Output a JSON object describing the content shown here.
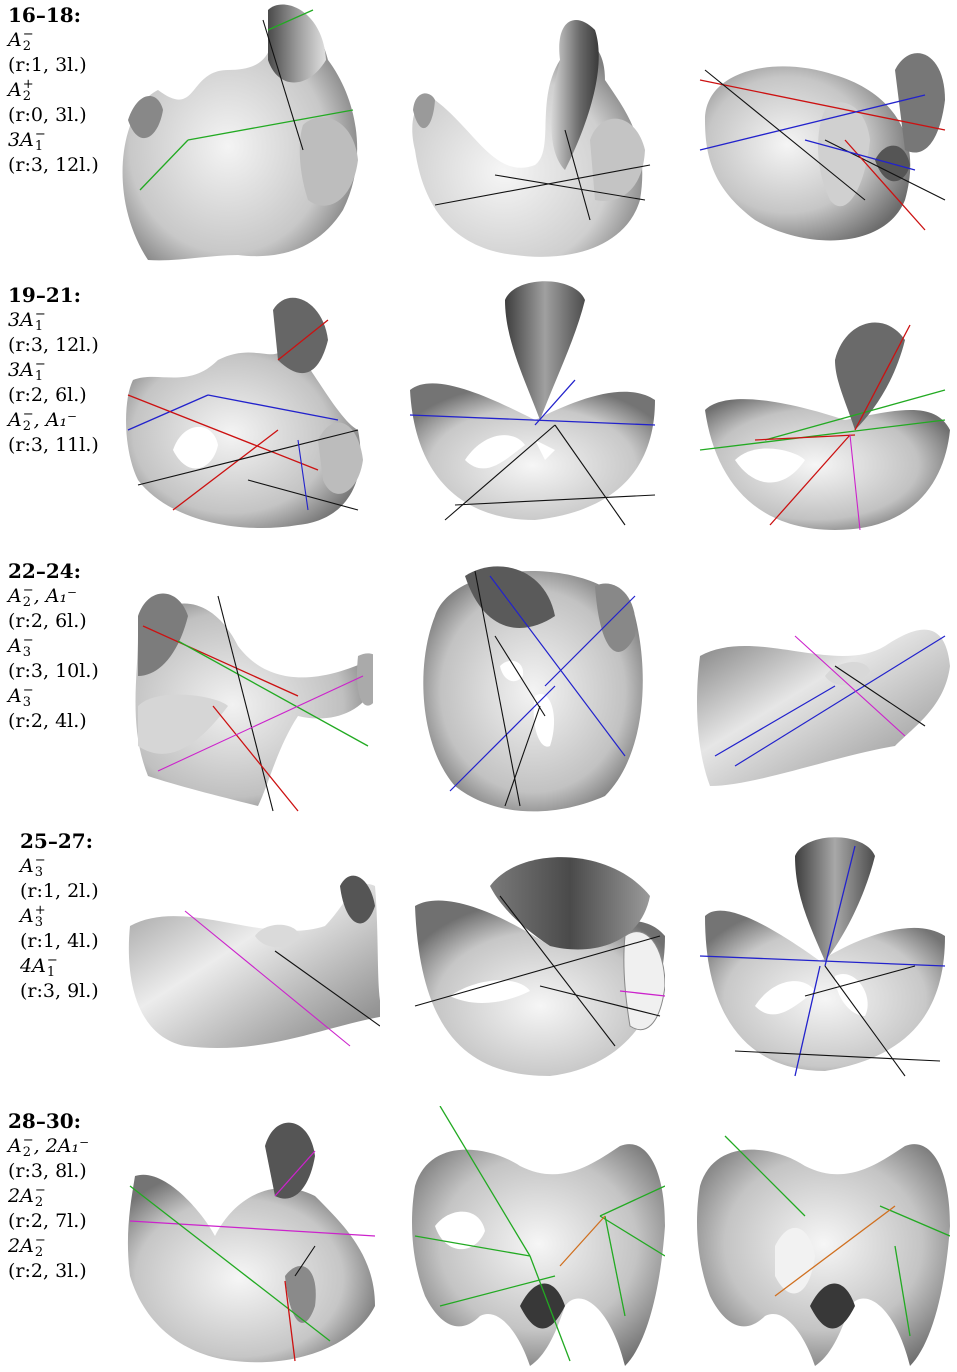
{
  "rows": [
    {
      "title": "16–18:",
      "items": [
        {
          "sing": "A",
          "sub": "2",
          "sup": "−",
          "prefix": "",
          "suffix": "",
          "param": "(r:1, 3l.)"
        },
        {
          "sing": "A",
          "sub": "2",
          "sup": "+",
          "prefix": "",
          "suffix": "",
          "param": "(r:0, 3l.)"
        },
        {
          "sing": "A",
          "sub": "1",
          "sup": "−",
          "prefix": "3",
          "suffix": "",
          "param": "(r:3, 12l.)"
        }
      ]
    },
    {
      "title": "19–21:",
      "items": [
        {
          "sing": "A",
          "sub": "1",
          "sup": "−",
          "prefix": "3",
          "suffix": "",
          "param": "(r:3, 12l.)"
        },
        {
          "sing": "A",
          "sub": "1",
          "sup": "−",
          "prefix": "3",
          "suffix": "",
          "param": "(r:2, 6l.)"
        },
        {
          "sing": "A",
          "sub": "2",
          "sup": "−",
          "prefix": "",
          "suffix": ", A₁⁻",
          "param": "(r:3, 11l.)"
        }
      ]
    },
    {
      "title": "22–24:",
      "items": [
        {
          "sing": "A",
          "sub": "2",
          "sup": "−",
          "prefix": "",
          "suffix": ", A₁⁻",
          "param": "(r:2, 6l.)"
        },
        {
          "sing": "A",
          "sub": "3",
          "sup": "−",
          "prefix": "",
          "suffix": "",
          "param": "(r:3, 10l.)"
        },
        {
          "sing": "A",
          "sub": "3",
          "sup": "−",
          "prefix": "",
          "suffix": "",
          "param": "(r:2, 4l.)"
        }
      ]
    },
    {
      "title": "25–27:",
      "items": [
        {
          "sing": "A",
          "sub": "3",
          "sup": "−",
          "prefix": "",
          "suffix": "",
          "param": "(r:1, 2l.)"
        },
        {
          "sing": "A",
          "sub": "3",
          "sup": "+",
          "prefix": "",
          "suffix": "",
          "param": "(r:1, 4l.)"
        },
        {
          "sing": "A",
          "sub": "1",
          "sup": "−",
          "prefix": "4",
          "suffix": "",
          "param": "(r:3, 9l.)"
        }
      ]
    },
    {
      "title": "28–30:",
      "items": [
        {
          "sing": "A",
          "sub": "2",
          "sup": "−",
          "prefix": "",
          "suffix": ", 2A₁⁻",
          "param": "(r:3, 8l.)"
        },
        {
          "sing": "A",
          "sub": "2",
          "sup": "−",
          "prefix": "2",
          "suffix": "",
          "param": "(r:2, 7l.)"
        },
        {
          "sing": "A",
          "sub": "2",
          "sup": "−",
          "prefix": "2",
          "suffix": "",
          "param": "(r:2, 3l.)"
        }
      ]
    }
  ],
  "line_colors": {
    "black": "#111111",
    "red": "#cc1111",
    "green": "#22aa22",
    "blue": "#2222cc",
    "magenta": "#cc22cc",
    "orange": "#d07020"
  }
}
